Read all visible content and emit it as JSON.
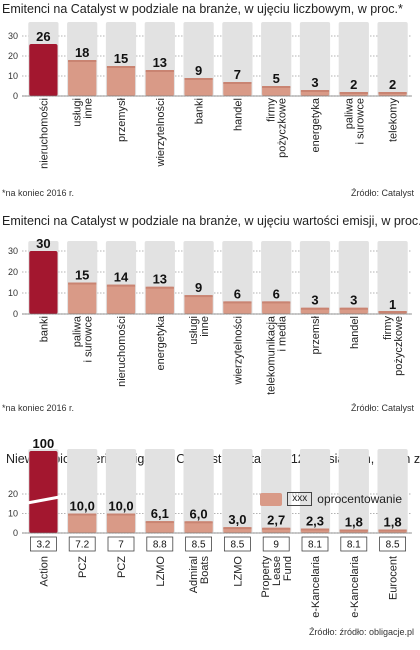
{
  "chart_data": [
    {
      "type": "bar",
      "title": "Emitenci na Catalyst w podziale na branże, w ujęciu liczbowym, w proc.*",
      "categories": [
        "nieruchomości",
        "usługi inne",
        "przemysł",
        "wierzytelności",
        "banki",
        "handel",
        "firmy pożyczkowe",
        "energetyka",
        "paliwa i surowce",
        "telekomy"
      ],
      "category_lines": [
        [
          "nieruchomości"
        ],
        [
          "usługi",
          "inne"
        ],
        [
          "przemysł"
        ],
        [
          "wierzytelności"
        ],
        [
          "banki"
        ],
        [
          "handel"
        ],
        [
          "firmy",
          "pożyczkowe"
        ],
        [
          "energetyka"
        ],
        [
          "paliwa",
          "i surowce"
        ],
        [
          "telekomy"
        ]
      ],
      "values": [
        26,
        18,
        15,
        13,
        9,
        7,
        5,
        3,
        2,
        2
      ],
      "value_labels": [
        "26",
        "18",
        "15",
        "13",
        "9",
        "7",
        "5",
        "3",
        "2",
        "2"
      ],
      "yticks": [
        "0",
        "10",
        "20",
        "30"
      ],
      "ylim": [
        0,
        30
      ],
      "footnote": "*na koniec 2016 r.",
      "source": "Źródło: Catalyst"
    },
    {
      "type": "bar",
      "title": "Emitenci na Catalyst w podziale na branże, w ujęciu wartości emisji, w proc.*",
      "categories": [
        "banki",
        "paliwa i surowce",
        "nieruchomości",
        "energetyka",
        "usługi inne",
        "wierzytelności",
        "telekomunikacja i media",
        "przemsł",
        "handel",
        "firmy pożyczkowe"
      ],
      "category_lines": [
        [
          "banki"
        ],
        [
          "paliwa",
          "i surowce"
        ],
        [
          "nieruchomości"
        ],
        [
          "energetyka"
        ],
        [
          "usługi",
          "inne"
        ],
        [
          "wierzytelności"
        ],
        [
          "telekomunikacja",
          "i media"
        ],
        [
          "przemsł"
        ],
        [
          "handel"
        ],
        [
          "firmy",
          "pożyczkowe"
        ]
      ],
      "values": [
        30,
        15,
        14,
        13,
        9,
        6,
        6,
        3,
        3,
        1
      ],
      "value_labels": [
        "30",
        "15",
        "14",
        "13",
        "9",
        "6",
        "6",
        "3",
        "3",
        "1"
      ],
      "yticks": [
        "0",
        "10",
        "20",
        "30"
      ],
      "ylim": [
        0,
        30
      ],
      "footnote": "*na koniec 2016 r.",
      "source": "Źródło: Catalyst"
    },
    {
      "type": "bar",
      "title": "Niewykupione serie obligacji z Catalyst w ostatnich 12 miesiącach, w mln zł",
      "categories": [
        "Action",
        "PCZ",
        "PCZ",
        "LZMO",
        "Admiral Boats",
        "LZMO",
        "Property Lease Fund",
        "e-Kancelaria",
        "e-Kancelaria",
        "Eurocent"
      ],
      "category_lines": [
        [
          "Action"
        ],
        [
          "PCZ"
        ],
        [
          "PCZ"
        ],
        [
          "LZMO"
        ],
        [
          "Admiral",
          "Boats"
        ],
        [
          "LZMO"
        ],
        [
          "Property",
          "Lease",
          "Fund"
        ],
        [
          "e-Kancelaria"
        ],
        [
          "e-Kancelaria"
        ],
        [
          "Eurocent"
        ]
      ],
      "values": [
        100,
        10.0,
        10.0,
        6.1,
        6.0,
        3.0,
        2.7,
        2.3,
        1.8,
        1.8
      ],
      "value_labels": [
        "100",
        "10,0",
        "10,0",
        "6,1",
        "6,0",
        "3,0",
        "2,7",
        "2,3",
        "1,8",
        "1,8"
      ],
      "interest": [
        "3.2",
        "7.2",
        "7",
        "8.8",
        "8.5",
        "8.5",
        "9",
        "8.1",
        "8.1",
        "8.5"
      ],
      "yticks": [
        "0",
        "10",
        "20"
      ],
      "ylim": [
        0,
        20
      ],
      "axis_break": true,
      "legend": {
        "box_text": "xxx",
        "label": "oprocentowanie"
      },
      "source": "Źródło: źródło: obligacje.pl"
    }
  ],
  "colors": {
    "highlight_bar": "#a3172f",
    "bar": "#d99a87",
    "bar_top": "#c98472",
    "bar_background": "#e2e2e2",
    "grid": "#9a9a9a"
  }
}
